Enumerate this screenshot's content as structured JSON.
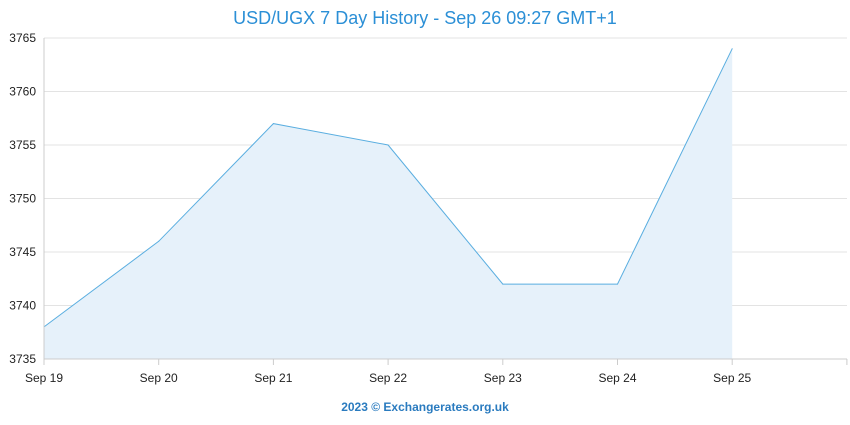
{
  "chart_data": {
    "type": "area",
    "title": "USD/UGX 7 Day History - Sep 26 09:27 GMT+1",
    "xlabel": "",
    "ylabel": "",
    "categories": [
      "Sep 19",
      "Sep 20",
      "Sep 21",
      "Sep 22",
      "Sep 23",
      "Sep 24",
      "Sep 25"
    ],
    "values": [
      3738,
      3746,
      3757,
      3755,
      3742,
      3742,
      3764
    ],
    "ylim": [
      3735,
      3765
    ],
    "yticks": [
      3735,
      3740,
      3745,
      3750,
      3755,
      3760,
      3765
    ],
    "grid": true,
    "legend": "none",
    "colors": {
      "line": "#5aaee0",
      "fill": "#e6f1fa",
      "title": "#2b8fd6",
      "footer": "#2a7bbf"
    }
  },
  "footer": {
    "text": "2023 © Exchangerates.org.uk"
  }
}
